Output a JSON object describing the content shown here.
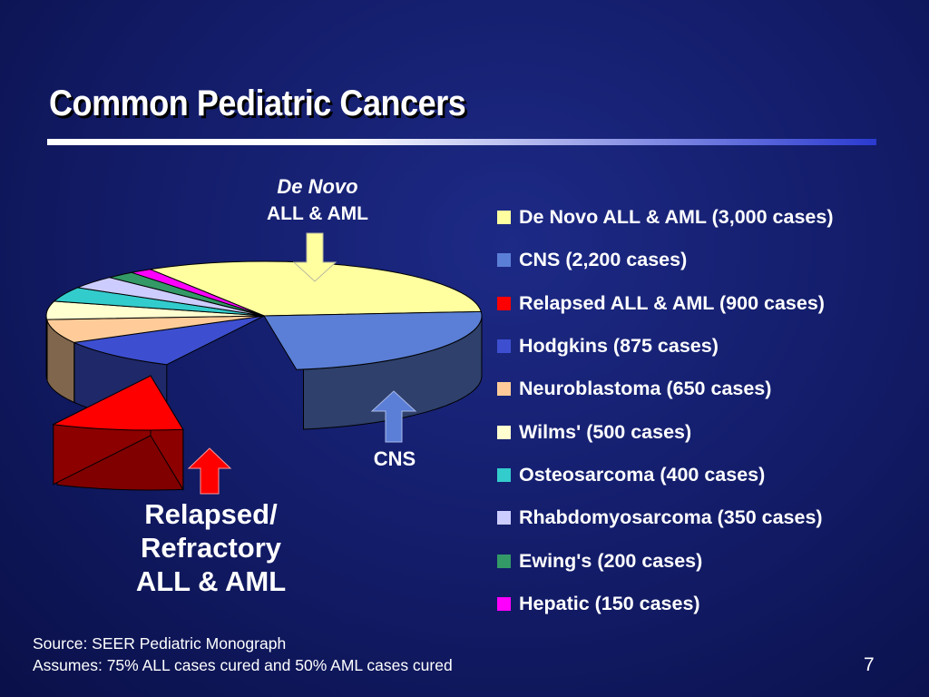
{
  "slide": {
    "title": "Common Pediatric Cancers",
    "source_line": "Source:  SEER Pediatric Monograph",
    "assumption_line": "Assumes: 75% ALL cases cured and 50% AML cases cured",
    "page_number": "7"
  },
  "callouts": {
    "denovo_line1": "De Novo",
    "denovo_line2": "ALL & AML",
    "cns": "CNS",
    "relapsed_line1": "Relapsed/",
    "relapsed_line2": "Refractory",
    "relapsed_line3": "ALL & AML"
  },
  "chart_data": {
    "type": "pie",
    "title": "",
    "categories": [
      "De Novo ALL & AML",
      "CNS",
      "Relapsed ALL & AML",
      "Hodgkins",
      "Neuroblastoma",
      "Wilms'",
      "Osteosarcoma",
      "Rhabdomyosarcoma",
      "Ewing's",
      "Hepatic"
    ],
    "values": [
      3000,
      2200,
      900,
      875,
      650,
      500,
      400,
      350,
      200,
      150
    ],
    "legend": [
      {
        "label": "De Novo ALL & AML (3,000 cases)",
        "color": "#ffffa0"
      },
      {
        "label": "CNS (2,200 cases)",
        "color": "#5b7fd6"
      },
      {
        "label": "Relapsed ALL & AML (900 cases)",
        "color": "#ff0000"
      },
      {
        "label": "Hodgkins (875 cases)",
        "color": "#3d4fd0"
      },
      {
        "label": "Neuroblastoma (650 cases)",
        "color": "#ffcc99"
      },
      {
        "label": "Wilms' (500 cases)",
        "color": "#ffffd0"
      },
      {
        "label": "Osteosarcoma (400 cases)",
        "color": "#33cccc"
      },
      {
        "label": "Rhabdomyosarcoma (350 cases)",
        "color": "#ccccff"
      },
      {
        "label": "Ewing's (200 cases)",
        "color": "#339966"
      },
      {
        "label": "Hepatic (150 cases)",
        "color": "#ff00ff"
      }
    ],
    "exploded": "Relapsed ALL & AML",
    "style": "3d",
    "legend_position": "right"
  }
}
